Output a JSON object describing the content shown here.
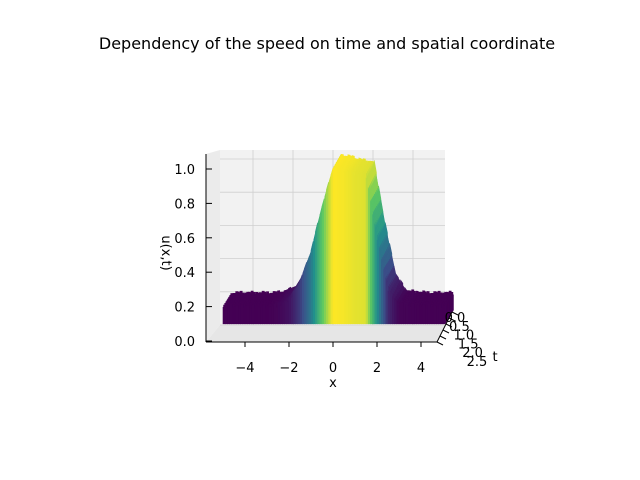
{
  "chart_data": {
    "type": "surface3d",
    "title": "Dependency of the speed on time and spatial coordinate",
    "xlabel": "x",
    "ylabel": "t",
    "zlabel": "u(x,t)",
    "xlim": [
      -5,
      5
    ],
    "ylim": [
      0,
      2.5
    ],
    "zlim": [
      0,
      1.05
    ],
    "x_ticks": [
      "−4",
      "−2",
      "0",
      "2",
      "4"
    ],
    "x_tick_values": [
      -4,
      -2,
      0,
      2,
      4
    ],
    "t_ticks": [
      "0.0",
      "0.5",
      "1.0",
      "1.5",
      "2.0",
      "2.5"
    ],
    "t_tick_values": [
      0,
      0.5,
      1,
      1.5,
      2,
      2.5
    ],
    "z_ticks": [
      "0.0",
      "0.2",
      "0.4",
      "0.6",
      "0.8",
      "1.0"
    ],
    "z_tick_values": [
      0,
      0.2,
      0.4,
      0.6,
      0.8,
      1.0
    ],
    "colormap": [
      "#440154",
      "#3b528b",
      "#21918c",
      "#5ec962",
      "#fde725"
    ],
    "view": {
      "elevation_deg": 3,
      "azimuth_deg": -90
    },
    "profile": {
      "x": [
        -5.0,
        -4.0,
        -3.0,
        -2.5,
        -2.0,
        -1.5,
        -1.0,
        -0.5,
        0.0,
        0.5,
        1.0,
        1.5,
        2.0,
        2.5,
        3.0,
        4.0,
        5.0
      ],
      "u": [
        0.2,
        0.2,
        0.2,
        0.21,
        0.24,
        0.34,
        0.52,
        0.78,
        1.0,
        0.99,
        0.97,
        0.96,
        0.6,
        0.3,
        0.21,
        0.2,
        0.2
      ]
    }
  }
}
